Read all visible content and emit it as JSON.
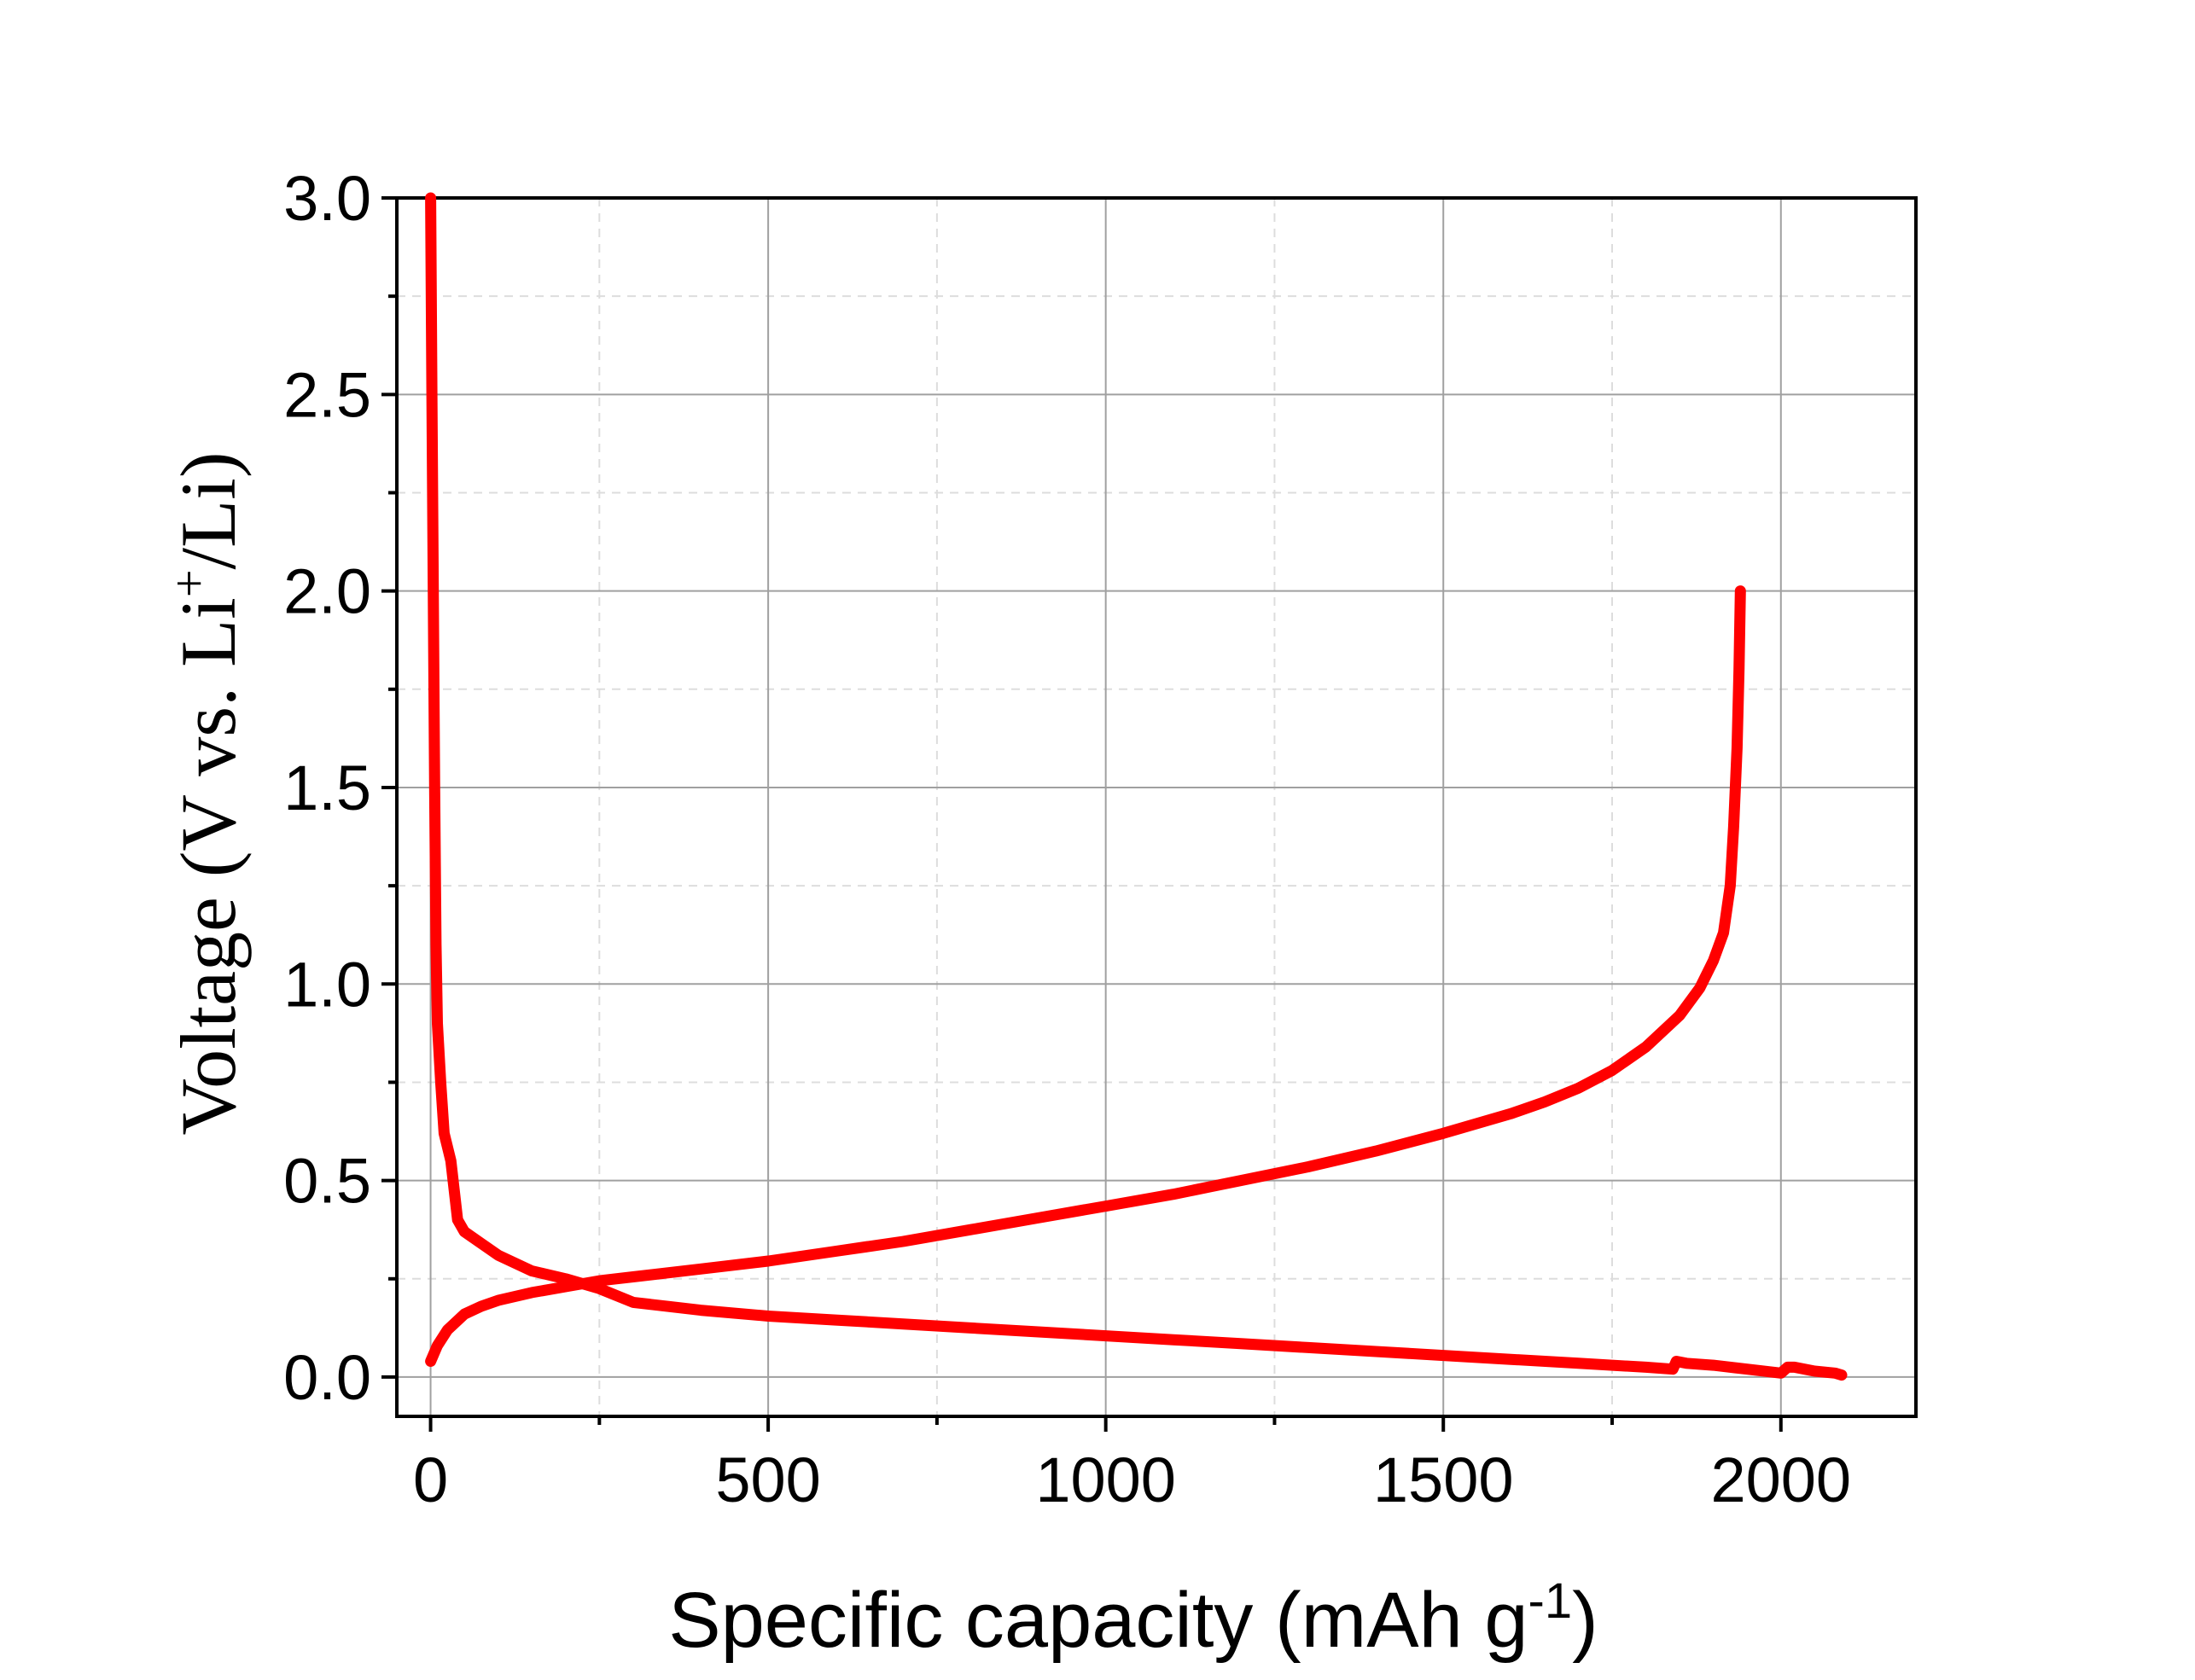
{
  "chart_data": {
    "type": "line",
    "xlabel": {
      "main": "Specific capacity (mAh g",
      "sup": "-1",
      "close": ")"
    },
    "ylabel": {
      "main": "Voltage (V vs. Li",
      "sup": "+",
      "close": "/Li)"
    },
    "xlim": [
      -50,
      2200
    ],
    "ylim": [
      -0.1,
      3.0
    ],
    "xticks": [
      0,
      500,
      1000,
      1500,
      2000
    ],
    "xtick_labels": [
      "0",
      "500",
      "1000",
      "1500",
      "2000"
    ],
    "xminor": [
      250,
      750,
      1250,
      1750
    ],
    "yticks": [
      0.0,
      0.5,
      1.0,
      1.5,
      2.0,
      2.5,
      3.0
    ],
    "ytick_labels": [
      "0.0",
      "0.5",
      "1.0",
      "1.5",
      "2.0",
      "2.5",
      "3.0"
    ],
    "yminor": [
      0.25,
      0.75,
      1.25,
      1.75,
      2.25,
      2.75
    ],
    "grid": true,
    "legend": "none",
    "line_color": "#ff0000",
    "series": [
      {
        "x": [
          0,
          2,
          4,
          6,
          8,
          10,
          15,
          20,
          30,
          40,
          50,
          75,
          100,
          150,
          200,
          250,
          300,
          400,
          500,
          600,
          700,
          800,
          900,
          1000,
          1100,
          1200,
          1300,
          1400,
          1500,
          1600,
          1700,
          1800,
          1840,
          1845,
          1860,
          1900,
          1950,
          2000,
          2010,
          2020,
          2050,
          2080,
          2090
        ],
        "y": [
          3.0,
          2.5,
          2.0,
          1.5,
          1.1,
          0.9,
          0.75,
          0.62,
          0.55,
          0.4,
          0.37,
          0.34,
          0.31,
          0.27,
          0.25,
          0.225,
          0.19,
          0.17,
          0.155,
          0.145,
          0.135,
          0.125,
          0.115,
          0.105,
          0.095,
          0.085,
          0.075,
          0.065,
          0.055,
          0.045,
          0.035,
          0.025,
          0.02,
          0.04,
          0.035,
          0.03,
          0.02,
          0.01,
          0.025,
          0.025,
          0.015,
          0.01,
          0.005
        ]
      },
      {
        "x": [
          0,
          10,
          25,
          50,
          75,
          100,
          150,
          200,
          250,
          300,
          400,
          500,
          600,
          700,
          800,
          900,
          1000,
          1100,
          1200,
          1300,
          1400,
          1500,
          1600,
          1650,
          1700,
          1750,
          1800,
          1850,
          1880,
          1900,
          1915,
          1925,
          1930,
          1935,
          1938,
          1940
        ],
        "y": [
          0.04,
          0.08,
          0.12,
          0.16,
          0.18,
          0.195,
          0.215,
          0.23,
          0.245,
          0.255,
          0.275,
          0.295,
          0.32,
          0.345,
          0.375,
          0.405,
          0.435,
          0.465,
          0.5,
          0.535,
          0.575,
          0.62,
          0.67,
          0.7,
          0.735,
          0.78,
          0.84,
          0.92,
          0.99,
          1.06,
          1.13,
          1.25,
          1.4,
          1.6,
          1.8,
          2.0
        ]
      }
    ]
  }
}
